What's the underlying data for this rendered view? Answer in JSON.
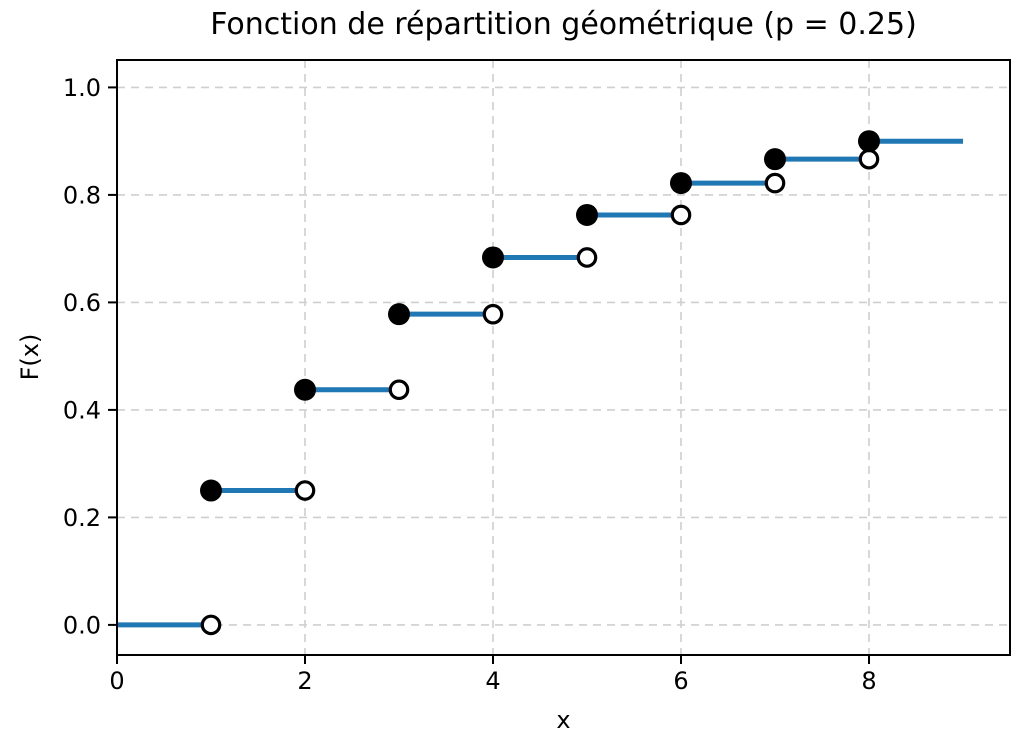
{
  "chart_data": {
    "type": "step",
    "title": "Fonction de répartition géométrique (p = 0.25)",
    "xlabel": "x",
    "ylabel": "F(x)",
    "p": 0.25,
    "xlim": [
      0,
      9.5
    ],
    "ylim": [
      -0.056,
      1.051
    ],
    "xticks": [
      {
        "value": 0,
        "label": "0"
      },
      {
        "value": 2,
        "label": "2"
      },
      {
        "value": 4,
        "label": "4"
      },
      {
        "value": 6,
        "label": "6"
      },
      {
        "value": 8,
        "label": "8"
      }
    ],
    "yticks": [
      {
        "value": 0.0,
        "label": "0.0"
      },
      {
        "value": 0.2,
        "label": "0.2"
      },
      {
        "value": 0.4,
        "label": "0.4"
      },
      {
        "value": 0.6,
        "label": "0.6"
      },
      {
        "value": 0.8,
        "label": "0.8"
      },
      {
        "value": 1.0,
        "label": "1.0"
      }
    ],
    "grid": {
      "show": true,
      "style": "dashed"
    },
    "segments": [
      {
        "x0": 0,
        "x1": 1,
        "y": 0.0,
        "dot_left": false,
        "open_right": true
      },
      {
        "x0": 1,
        "x1": 2,
        "y": 0.25,
        "dot_left": true,
        "open_right": true
      },
      {
        "x0": 2,
        "x1": 3,
        "y": 0.4375,
        "dot_left": true,
        "open_right": true
      },
      {
        "x0": 3,
        "x1": 4,
        "y": 0.5781,
        "dot_left": true,
        "open_right": true
      },
      {
        "x0": 4,
        "x1": 5,
        "y": 0.6836,
        "dot_left": true,
        "open_right": true
      },
      {
        "x0": 5,
        "x1": 6,
        "y": 0.7627,
        "dot_left": true,
        "open_right": true
      },
      {
        "x0": 6,
        "x1": 7,
        "y": 0.822,
        "dot_left": true,
        "open_right": true
      },
      {
        "x0": 7,
        "x1": 8,
        "y": 0.8665,
        "dot_left": true,
        "open_right": true
      },
      {
        "x0": 8,
        "x1": 9,
        "y": 0.8999,
        "dot_left": true,
        "open_right": false
      }
    ],
    "colors": {
      "line": "#1f77b4",
      "marker": "#000000",
      "marker_face": "#ffffff",
      "grid": "#cfcfcf",
      "axis": "#000000",
      "background": "#ffffff"
    }
  }
}
